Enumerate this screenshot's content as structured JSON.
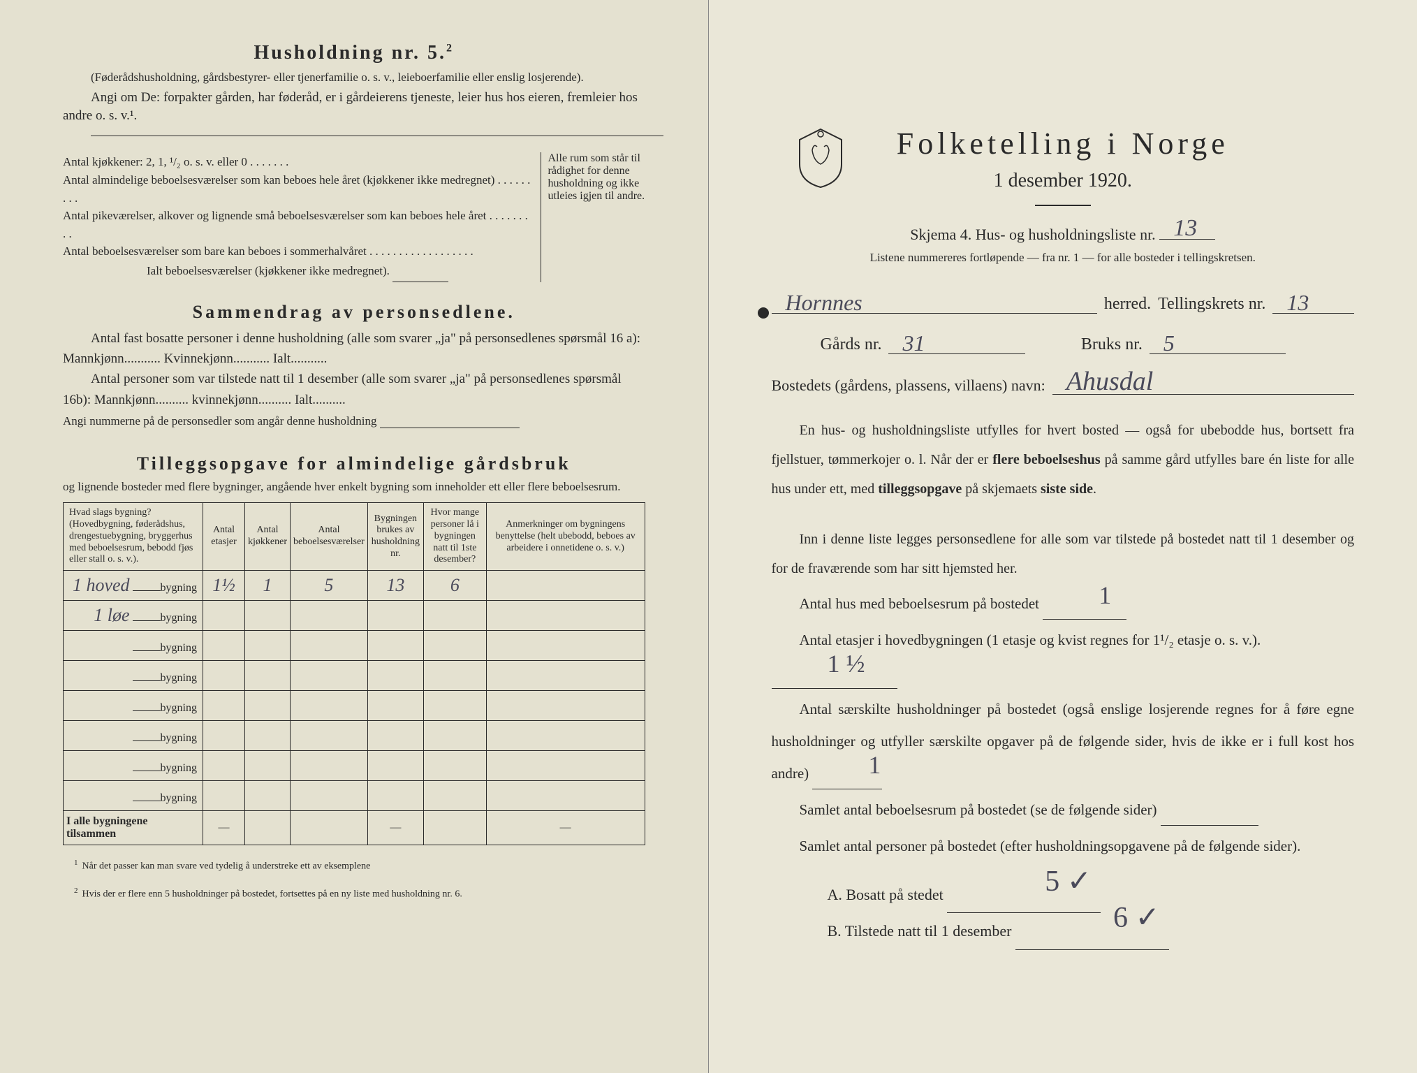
{
  "left": {
    "heading": "Husholdning nr. 5.",
    "heading_sup": "2",
    "intro_paren": "(Føderådshusholdning, gårdsbestyrer- eller tjenerfamilie o. s. v., leieboerfamilie eller enslig losjerende).",
    "intro_line": "Angi om De: forpakter gården, har føderåd, er i gårdeierens tjeneste, leier hus hos eieren, fremleier hos andre o. s. v.¹.",
    "kjokken": {
      "l1": "Antal kjøkkener: 2, 1, ¹/₂ o. s. v. eller 0 . . . . . . .",
      "l2": "Antal almindelige beboelsesværelser som kan beboes hele året (kjøkkener ikke medregnet) . . . . . . . . .",
      "l3": "Antal pikeværelser, alkover og lignende små beboelsesværelser som kan beboes hele året . . . . . . . . .",
      "l4": "Antal beboelsesværelser som bare kan beboes i sommerhalvåret . . . . . . . . . . . . . . . . . .",
      "l5": "Ialt beboelsesværelser (kjøkkener ikke medregnet).",
      "side": "Alle rum som står til rådighet for denne husholdning og ikke utleies igjen til andre."
    },
    "sammendrag": {
      "title": "Sammendrag av personsedlene.",
      "l1": "Antal fast bosatte personer i denne husholdning (alle som svarer „ja\" på personsedlenes spørsmål 16 a): Mannkjønn........... Kvinnekjønn........... Ialt...........",
      "l2": "Antal personer som var tilstede natt til 1 desember (alle som svarer „ja\" på personsedlenes spørsmål 16b): Mannkjønn.......... kvinnekjønn.......... Ialt..........",
      "l3": "Angi nummerne på de personsedler som angår denne husholdning"
    },
    "tillegg": {
      "title": "Tilleggsopgave for almindelige gårdsbruk",
      "sub": "og lignende bosteder med flere bygninger, angående hver enkelt bygning som inneholder ett eller flere beboelsesrum."
    },
    "table": {
      "headers": [
        "Hvad slags bygning?\n(Hovedbygning, føderådshus, drengestuebygning, bryggerhus med beboelsesrum, bebodd fjøs eller stall o. s. v.).",
        "Antal etasjer",
        "Antal kjøkkener",
        "Antal beboelsesværelser",
        "Bygningen brukes av husholdning nr.",
        "Hvor mange personer lå i bygningen natt til 1ste desember?",
        "Anmerkninger om bygningens benyttelse (helt ubebodd, beboes av arbeidere i onnetidene o. s. v.)"
      ],
      "rows": [
        {
          "name_hw": "1 hoved",
          "suffix": "bygning",
          "etasjer": "1½",
          "kjokken": "1",
          "vaer": "5",
          "hush": "13",
          "pers": "6",
          "anm": ""
        },
        {
          "name_hw": "1 løe",
          "suffix": "bygning",
          "etasjer": "",
          "kjokken": "",
          "vaer": "",
          "hush": "",
          "pers": "",
          "anm": ""
        },
        {
          "name_hw": "",
          "suffix": "bygning",
          "etasjer": "",
          "kjokken": "",
          "vaer": "",
          "hush": "",
          "pers": "",
          "anm": ""
        },
        {
          "name_hw": "",
          "suffix": "bygning",
          "etasjer": "",
          "kjokken": "",
          "vaer": "",
          "hush": "",
          "pers": "",
          "anm": ""
        },
        {
          "name_hw": "",
          "suffix": "bygning",
          "etasjer": "",
          "kjokken": "",
          "vaer": "",
          "hush": "",
          "pers": "",
          "anm": ""
        },
        {
          "name_hw": "",
          "suffix": "bygning",
          "etasjer": "",
          "kjokken": "",
          "vaer": "",
          "hush": "",
          "pers": "",
          "anm": ""
        },
        {
          "name_hw": "",
          "suffix": "bygning",
          "etasjer": "",
          "kjokken": "",
          "vaer": "",
          "hush": "",
          "pers": "",
          "anm": ""
        },
        {
          "name_hw": "",
          "suffix": "bygning",
          "etasjer": "",
          "kjokken": "",
          "vaer": "",
          "hush": "",
          "pers": "",
          "anm": ""
        }
      ],
      "total": "I alle bygningene tilsammen"
    },
    "footnotes": {
      "f1": "Når det passer kan man svare ved tydelig å understreke ett av eksemplene",
      "f2": "Hvis der er flere enn 5 husholdninger på bostedet, fortsettes på en ny liste med husholdning nr. 6."
    }
  },
  "right": {
    "title": "Folketelling i Norge",
    "subtitle": "1 desember 1920.",
    "skjema": "Skjema 4.  Hus- og husholdningsliste nr.",
    "skjema_nr": "13",
    "note": "Listene nummereres fortløpende — fra nr. 1 — for alle bosteder i tellingskretsen.",
    "herred_hw": "Hornnes",
    "herred_label": "herred.",
    "krets_label": "Tellingskrets nr.",
    "krets_nr": "13",
    "gard_label": "Gårds nr.",
    "gard_nr": "31",
    "bruk_label": "Bruks nr.",
    "bruk_nr": "5",
    "bosted_label": "Bostedets (gårdens, plassens, villaens) navn:",
    "bosted_hw": "Ahusdal",
    "p1": "En hus- og husholdningsliste utfylles for hvert bosted — også for ubebodde hus, bortsett fra fjellstuer, tømmerkojer o. l. Når der er flere beboelseshus på samme gård utfylles bare én liste for alle hus under ett, med tilleggsopgave på skjemaets siste side.",
    "p2": "Inn i denne liste legges personsedlene for alle som var tilstede på bostedet natt til 1 desember og for de fraværende som har sitt hjemsted her.",
    "stat1_label": "Antal hus med beboelsesrum på bostedet",
    "stat1_hw": "1",
    "stat2_label": "Antal etasjer i hovedbygningen (1 etasje og kvist regnes for 1¹/₂ etasje o. s. v.).",
    "stat2_hw": "1 ½",
    "stat3_label": "Antal særskilte husholdninger på bostedet (også enslige losjerende regnes for å føre egne husholdninger og utfyller særskilte opgaver på de følgende sider, hvis de ikke er i full kost hos andre)",
    "stat3_hw": "1",
    "stat4_label": "Samlet antal beboelsesrum på bostedet (se de følgende sider)",
    "stat5_label": "Samlet antal personer på bostedet (efter husholdningsopgavene på de følgende sider).",
    "a_label": "A.  Bosatt på stedet",
    "a_hw": "5 ✓",
    "b_label": "B.  Tilstede natt til 1 desember",
    "b_hw": "6 ✓"
  },
  "colors": {
    "paper": "#e8e5d6",
    "ink": "#2a2a2a",
    "handwriting": "#4a4a5a"
  }
}
